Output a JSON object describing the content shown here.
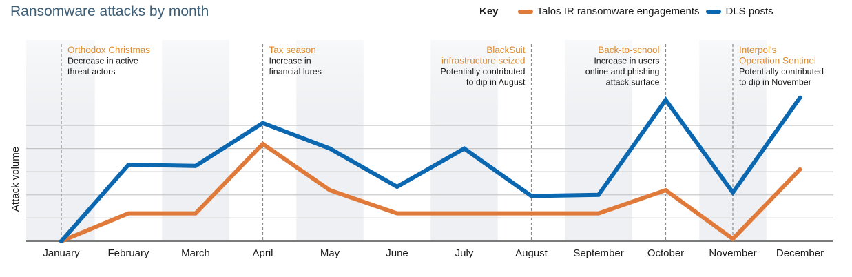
{
  "chart_data": {
    "type": "line",
    "title": "Ransomware attacks by month",
    "xlabel": "",
    "ylabel": "Attack volume",
    "legend_title": "Key",
    "legend_position": "top-right",
    "grid": true,
    "ylim": [
      0,
      6.5
    ],
    "gridline_values": [
      1,
      2,
      3,
      4,
      5
    ],
    "categories": [
      "January",
      "February",
      "March",
      "April",
      "May",
      "June",
      "July",
      "August",
      "September",
      "October",
      "November",
      "December"
    ],
    "series": [
      {
        "name": "Talos IR ransomware engagements",
        "color": "#e07a3a",
        "values": [
          0,
          1.2,
          1.2,
          4.2,
          2.2,
          1.2,
          1.2,
          1.2,
          1.2,
          2.2,
          0.1,
          3.1
        ]
      },
      {
        "name": "DLS posts",
        "color": "#0a67b0",
        "values": [
          0,
          3.3,
          3.25,
          5.1,
          4.0,
          2.35,
          4.0,
          1.95,
          2.0,
          6.1,
          2.1,
          6.2
        ]
      }
    ],
    "annotations": [
      {
        "month": "January",
        "align": "left",
        "title": [
          "Orthodox Christmas"
        ],
        "text": [
          "Decrease in active",
          "threat actors"
        ]
      },
      {
        "month": "April",
        "align": "left",
        "title": [
          "Tax season"
        ],
        "text": [
          "Increase in",
          "financial lures"
        ]
      },
      {
        "month": "August",
        "align": "right",
        "title": [
          "BlackSuit",
          "infrastructure seized"
        ],
        "text": [
          "Potentially contributed",
          "to dip in August"
        ]
      },
      {
        "month": "October",
        "align": "right",
        "title": [
          "Back-to-school"
        ],
        "text": [
          "Increase in users",
          "online and phishing",
          "attack surface"
        ]
      },
      {
        "month": "November",
        "align": "left",
        "title": [
          "Interpol's",
          "Operation Sentinel"
        ],
        "text": [
          "Potentially contributed",
          "to dip in November"
        ]
      }
    ],
    "colors": {
      "title": "#3d5f78",
      "annotation_title": "#e08a2c",
      "band": "#eef0f3",
      "gridline": "#c4c4c4",
      "baseline": "#7a7a7a"
    }
  }
}
